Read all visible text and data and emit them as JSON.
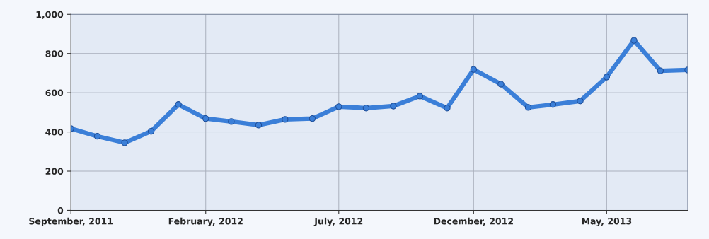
{
  "chart_data": {
    "type": "line",
    "x": [
      "2011-09",
      "2011-10",
      "2011-11",
      "2011-12",
      "2012-01",
      "2012-02",
      "2012-03",
      "2012-04",
      "2012-05",
      "2012-06",
      "2012-07",
      "2012-08",
      "2012-09",
      "2012-10",
      "2012-11",
      "2012-12",
      "2013-01",
      "2013-02",
      "2013-03",
      "2013-04",
      "2013-05",
      "2013-06",
      "2013-07",
      "2013-08"
    ],
    "series": [
      {
        "color": "#3b7fd8",
        "values": [
          417,
          378,
          345,
          403,
          540,
          468,
          453,
          435,
          464,
          468,
          529,
          522,
          532,
          583,
          522,
          719,
          644,
          525,
          540,
          558,
          680,
          867,
          712,
          716
        ]
      }
    ],
    "xlim": [
      "2011-09",
      "2013-08"
    ],
    "xticks": [
      {
        "value": "2011-09",
        "label": "September, 2011"
      },
      {
        "value": "2012-02",
        "label": "February, 2012"
      },
      {
        "value": "2012-07",
        "label": "July, 2012"
      },
      {
        "value": "2012-12",
        "label": "December, 2012"
      },
      {
        "value": "2013-05",
        "label": "May, 2013"
      }
    ],
    "ylim": [
      0,
      1000
    ],
    "yticks": [
      0,
      200,
      400,
      600,
      800,
      {
        "value": 1000,
        "label": "1,000"
      }
    ],
    "grid": true,
    "marker": "circle",
    "line_style": "solid"
  }
}
